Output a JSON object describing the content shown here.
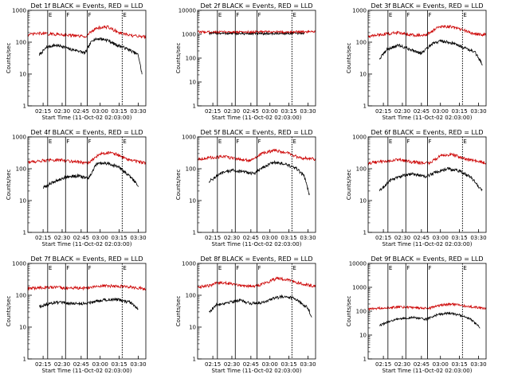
{
  "chart_data": [
    {
      "type": "line",
      "title": "Det 1f BLACK = Events, RED = LLD",
      "xlabel": "Start Time (11-Oct-02 02:03:00)",
      "ylabel": "Counts/sec",
      "y_scale": "log",
      "ylim": [
        1,
        1000
      ],
      "xlim": [
        2.05,
        3.6
      ],
      "grid": false,
      "x_ticks": [
        "02:15",
        "02:30",
        "02:45",
        "03:00",
        "03:15",
        "03:30"
      ],
      "y_ticks": [
        "1",
        "10",
        "100",
        "1000"
      ],
      "interval_markers": [
        "E",
        "F",
        "F",
        "E"
      ],
      "series": [
        {
          "color": "#000000",
          "start": 2.2,
          "end": 3.55,
          "x": [
            2.2,
            2.3,
            2.4,
            2.5,
            2.6,
            2.7,
            2.8,
            2.9,
            3.0,
            3.1,
            3.2,
            3.3,
            3.4,
            3.5,
            3.55
          ],
          "y": [
            40,
            70,
            80,
            75,
            60,
            55,
            45,
            120,
            130,
            115,
            85,
            70,
            55,
            40,
            10
          ]
        },
        {
          "color": "#cc0000",
          "start": 2.05,
          "end": 3.6,
          "x": [
            2.05,
            2.2,
            2.35,
            2.5,
            2.65,
            2.8,
            2.95,
            3.1,
            3.25,
            3.4,
            3.6
          ],
          "y": [
            170,
            190,
            180,
            175,
            160,
            150,
            280,
            300,
            200,
            160,
            150
          ]
        }
      ]
    },
    {
      "type": "line",
      "title": "Det 2f BLACK = Events, RED = LLD",
      "xlabel": "Start Time (11-Oct-02 02:03:00)",
      "ylabel": "Counts/sec",
      "y_scale": "log",
      "ylim": [
        1,
        10000
      ],
      "xlim": [
        2.05,
        3.6
      ],
      "grid": false,
      "x_ticks": [
        "02:15",
        "02:30",
        "02:45",
        "03:00",
        "03:15",
        "03:30"
      ],
      "y_ticks": [
        "1",
        "10",
        "100",
        "1000",
        "10000"
      ],
      "interval_markers": [
        "E",
        "F",
        "F",
        "E"
      ],
      "series": [
        {
          "color": "#000000",
          "start": 2.2,
          "end": 3.45,
          "x": [
            2.2,
            2.5,
            2.8,
            3.1,
            3.45
          ],
          "y": [
            1100,
            1080,
            1050,
            1070,
            1100
          ]
        },
        {
          "color": "#cc0000",
          "start": 2.05,
          "end": 3.6,
          "x": [
            2.05,
            2.3,
            2.6,
            2.9,
            3.2,
            3.6
          ],
          "y": [
            1250,
            1250,
            1240,
            1260,
            1250,
            1260
          ]
        }
      ]
    },
    {
      "type": "line",
      "title": "Det 3f BLACK = Events, RED = LLD",
      "xlabel": "Start Time (11-Oct-02 02:03:00)",
      "ylabel": "Counts/sec",
      "y_scale": "log",
      "ylim": [
        1,
        1000
      ],
      "xlim": [
        2.05,
        3.6
      ],
      "grid": false,
      "x_ticks": [
        "02:15",
        "02:30",
        "02:45",
        "03:00",
        "03:15",
        "03:30"
      ],
      "y_ticks": [
        "1",
        "10",
        "100",
        "1000"
      ],
      "interval_markers": [
        "E",
        "F",
        "F",
        "E"
      ],
      "series": [
        {
          "color": "#000000",
          "start": 2.2,
          "end": 3.55,
          "x": [
            2.2,
            2.3,
            2.45,
            2.6,
            2.75,
            2.9,
            3.0,
            3.15,
            3.3,
            3.45,
            3.55
          ],
          "y": [
            30,
            60,
            80,
            60,
            45,
            90,
            110,
            95,
            70,
            50,
            20
          ]
        },
        {
          "color": "#cc0000",
          "start": 2.05,
          "end": 3.6,
          "x": [
            2.05,
            2.25,
            2.45,
            2.65,
            2.8,
            2.95,
            3.1,
            3.3,
            3.45,
            3.6
          ],
          "y": [
            150,
            180,
            200,
            170,
            160,
            280,
            320,
            240,
            180,
            170
          ]
        }
      ]
    },
    {
      "type": "line",
      "title": "Det 4f BLACK = Events, RED = LLD",
      "xlabel": "Start Time (11-Oct-02 02:03:00)",
      "ylabel": "Counts/sec",
      "y_scale": "log",
      "ylim": [
        1,
        1000
      ],
      "xlim": [
        2.05,
        3.6
      ],
      "grid": false,
      "x_ticks": [
        "02:15",
        "02:30",
        "02:45",
        "03:00",
        "03:15",
        "03:30"
      ],
      "y_ticks": [
        "1",
        "10",
        "100",
        "1000"
      ],
      "interval_markers": [
        "E",
        "F",
        "F",
        "E"
      ],
      "series": [
        {
          "color": "#000000",
          "start": 2.25,
          "end": 3.5,
          "x": [
            2.25,
            2.4,
            2.55,
            2.7,
            2.85,
            2.95,
            3.1,
            3.25,
            3.4,
            3.5
          ],
          "y": [
            25,
            40,
            55,
            60,
            50,
            140,
            150,
            110,
            55,
            30
          ]
        },
        {
          "color": "#cc0000",
          "start": 2.05,
          "end": 3.6,
          "x": [
            2.05,
            2.25,
            2.45,
            2.65,
            2.85,
            3.0,
            3.15,
            3.35,
            3.6
          ],
          "y": [
            160,
            180,
            190,
            170,
            150,
            300,
            330,
            200,
            150
          ]
        }
      ]
    },
    {
      "type": "line",
      "title": "Det 5f BLACK = Events, RED = LLD",
      "xlabel": "Start Time (11-Oct-02 02:03:00)",
      "ylabel": "Counts/sec",
      "y_scale": "log",
      "ylim": [
        1,
        1000
      ],
      "xlim": [
        2.05,
        3.6
      ],
      "grid": false,
      "x_ticks": [
        "02:15",
        "02:30",
        "02:45",
        "03:00",
        "03:15",
        "03:30"
      ],
      "y_ticks": [
        "1",
        "10",
        "100",
        "1000"
      ],
      "interval_markers": [
        "E",
        "F",
        "F",
        "E"
      ],
      "series": [
        {
          "color": "#000000",
          "start": 2.2,
          "end": 3.52,
          "x": [
            2.2,
            2.35,
            2.5,
            2.65,
            2.8,
            2.9,
            3.05,
            3.2,
            3.35,
            3.45,
            3.52
          ],
          "y": [
            40,
            70,
            90,
            80,
            70,
            110,
            160,
            140,
            100,
            60,
            15
          ]
        },
        {
          "color": "#cc0000",
          "start": 2.05,
          "end": 3.6,
          "x": [
            2.05,
            2.2,
            2.4,
            2.6,
            2.75,
            2.9,
            3.05,
            3.2,
            3.4,
            3.6
          ],
          "y": [
            200,
            220,
            240,
            200,
            180,
            300,
            380,
            330,
            220,
            200
          ]
        }
      ]
    },
    {
      "type": "line",
      "title": "Det 6f BLACK = Events, RED = LLD",
      "xlabel": "Start Time (11-Oct-02 02:03:00)",
      "ylabel": "Counts/sec",
      "y_scale": "log",
      "ylim": [
        1,
        1000
      ],
      "xlim": [
        2.05,
        3.6
      ],
      "grid": false,
      "x_ticks": [
        "02:15",
        "02:30",
        "02:45",
        "03:00",
        "03:15",
        "03:30"
      ],
      "y_ticks": [
        "1",
        "10",
        "100",
        "1000"
      ],
      "interval_markers": [
        "E",
        "F",
        "F",
        "E"
      ],
      "series": [
        {
          "color": "#000000",
          "start": 2.2,
          "end": 3.55,
          "x": [
            2.2,
            2.35,
            2.5,
            2.65,
            2.8,
            2.95,
            3.1,
            3.25,
            3.4,
            3.55
          ],
          "y": [
            20,
            45,
            60,
            70,
            55,
            80,
            100,
            85,
            55,
            20
          ]
        },
        {
          "color": "#cc0000",
          "start": 2.05,
          "end": 3.6,
          "x": [
            2.05,
            2.25,
            2.45,
            2.65,
            2.85,
            3.0,
            3.15,
            3.35,
            3.6
          ],
          "y": [
            150,
            170,
            190,
            160,
            150,
            250,
            280,
            200,
            150
          ]
        }
      ]
    },
    {
      "type": "line",
      "title": "Det 7f BLACK = Events, RED = LLD",
      "xlabel": "Start Time (11-Oct-02 02:03:00)",
      "ylabel": "Counts/sec",
      "y_scale": "log",
      "ylim": [
        1,
        1000
      ],
      "xlim": [
        2.05,
        3.6
      ],
      "grid": false,
      "x_ticks": [
        "02:15",
        "02:30",
        "02:45",
        "03:00",
        "03:15",
        "03:30"
      ],
      "y_ticks": [
        "1",
        "10",
        "100",
        "1000"
      ],
      "interval_markers": [
        "E",
        "F",
        "F",
        "E"
      ],
      "series": [
        {
          "color": "#000000",
          "start": 2.2,
          "end": 3.5,
          "x": [
            2.2,
            2.4,
            2.6,
            2.8,
            3.0,
            3.2,
            3.4,
            3.5
          ],
          "y": [
            45,
            60,
            55,
            55,
            70,
            75,
            60,
            35
          ]
        },
        {
          "color": "#cc0000",
          "start": 2.05,
          "end": 3.6,
          "x": [
            2.05,
            2.3,
            2.55,
            2.8,
            3.05,
            3.3,
            3.6
          ],
          "y": [
            160,
            180,
            170,
            170,
            200,
            190,
            160
          ]
        }
      ]
    },
    {
      "type": "line",
      "title": "Det 8f BLACK = Events, RED = LLD",
      "xlabel": "Start Time (11-Oct-02 02:03:00)",
      "ylabel": "Counts/sec",
      "y_scale": "log",
      "ylim": [
        1,
        1000
      ],
      "xlim": [
        2.05,
        3.6
      ],
      "grid": false,
      "x_ticks": [
        "02:15",
        "02:30",
        "02:45",
        "03:00",
        "03:15",
        "03:30"
      ],
      "y_ticks": [
        "1",
        "10",
        "100",
        "1000"
      ],
      "interval_markers": [
        "E",
        "F",
        "F",
        "E"
      ],
      "series": [
        {
          "color": "#000000",
          "start": 2.2,
          "end": 3.55,
          "x": [
            2.2,
            2.3,
            2.45,
            2.6,
            2.75,
            2.9,
            3.05,
            3.2,
            3.35,
            3.5,
            3.55
          ],
          "y": [
            30,
            50,
            60,
            70,
            55,
            60,
            80,
            95,
            75,
            40,
            20
          ]
        },
        {
          "color": "#cc0000",
          "start": 2.05,
          "end": 3.6,
          "x": [
            2.05,
            2.2,
            2.35,
            2.5,
            2.65,
            2.8,
            2.95,
            3.1,
            3.25,
            3.45,
            3.6
          ],
          "y": [
            180,
            200,
            260,
            230,
            200,
            190,
            250,
            350,
            300,
            220,
            190
          ]
        }
      ]
    },
    {
      "type": "line",
      "title": "Det 9f BLACK = Events, RED = LLD",
      "xlabel": "Start Time (11-Oct-02 02:03:00)",
      "ylabel": "Counts/sec",
      "y_scale": "log",
      "ylim": [
        1,
        10000
      ],
      "xlim": [
        2.05,
        3.6
      ],
      "grid": false,
      "x_ticks": [
        "02:15",
        "02:30",
        "02:45",
        "03:00",
        "03:15",
        "03:30"
      ],
      "y_ticks": [
        "1",
        "10",
        "100",
        "1000",
        "10000"
      ],
      "interval_markers": [
        "E",
        "F",
        "F",
        "E"
      ],
      "series": [
        {
          "color": "#000000",
          "start": 2.2,
          "end": 3.52,
          "x": [
            2.2,
            2.35,
            2.5,
            2.65,
            2.8,
            2.95,
            3.1,
            3.25,
            3.4,
            3.52
          ],
          "y": [
            25,
            40,
            50,
            55,
            45,
            70,
            85,
            70,
            45,
            20
          ]
        },
        {
          "color": "#cc0000",
          "start": 2.05,
          "end": 3.6,
          "x": [
            2.05,
            2.25,
            2.45,
            2.65,
            2.85,
            3.0,
            3.15,
            3.35,
            3.6
          ],
          "y": [
            120,
            140,
            150,
            140,
            130,
            180,
            200,
            160,
            130
          ]
        }
      ]
    }
  ]
}
